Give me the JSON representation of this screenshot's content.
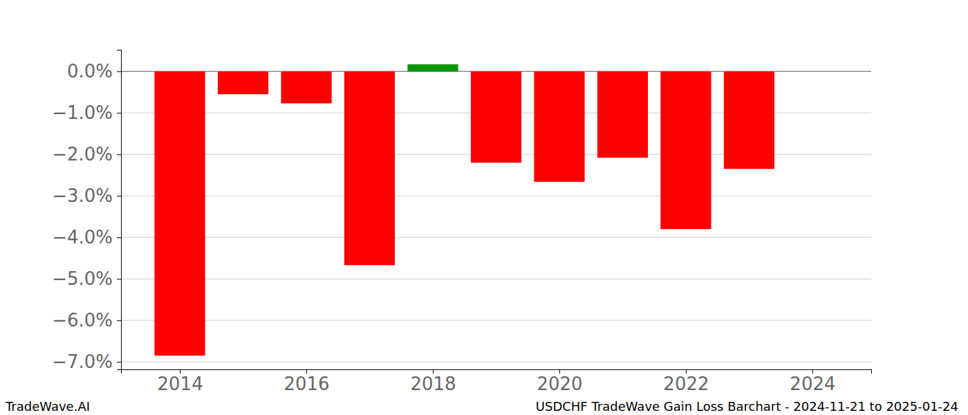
{
  "chart_data": {
    "type": "bar",
    "title": "USDCHF TradeWave Gain Loss Barchart - 2024-11-21 to 2025-01-24",
    "annotations": [
      "TradeWave.AI"
    ],
    "x": [
      2014,
      2015,
      2016,
      2017,
      2018,
      2019,
      2020,
      2021,
      2022,
      2023
    ],
    "values": [
      -6.85,
      -0.55,
      -0.77,
      -4.67,
      0.17,
      -2.2,
      -2.66,
      -2.08,
      -3.8,
      -2.35
    ],
    "colors": [
      "#ff0000",
      "#ff0000",
      "#ff0000",
      "#ff0000",
      "#009600",
      "#ff0000",
      "#ff0000",
      "#ff0000",
      "#ff0000",
      "#ff0000"
    ],
    "xlim": [
      2013.07,
      2024.93
    ],
    "xticks": [
      2014,
      2016,
      2018,
      2020,
      2022,
      2024
    ],
    "ylim": [
      -7.18,
      0.52
    ],
    "yticks": [
      {
        "value": 0,
        "label": "0.0%"
      },
      {
        "value": -1,
        "label": "−1.0%"
      },
      {
        "value": -2,
        "label": "−2.0%"
      },
      {
        "value": -3,
        "label": "−3.0%"
      },
      {
        "value": -4,
        "label": "−4.0%"
      },
      {
        "value": -5,
        "label": "−5.0%"
      },
      {
        "value": -6,
        "label": "−6.0%"
      },
      {
        "value": -7,
        "label": "−7.0%"
      }
    ],
    "grid": true
  }
}
